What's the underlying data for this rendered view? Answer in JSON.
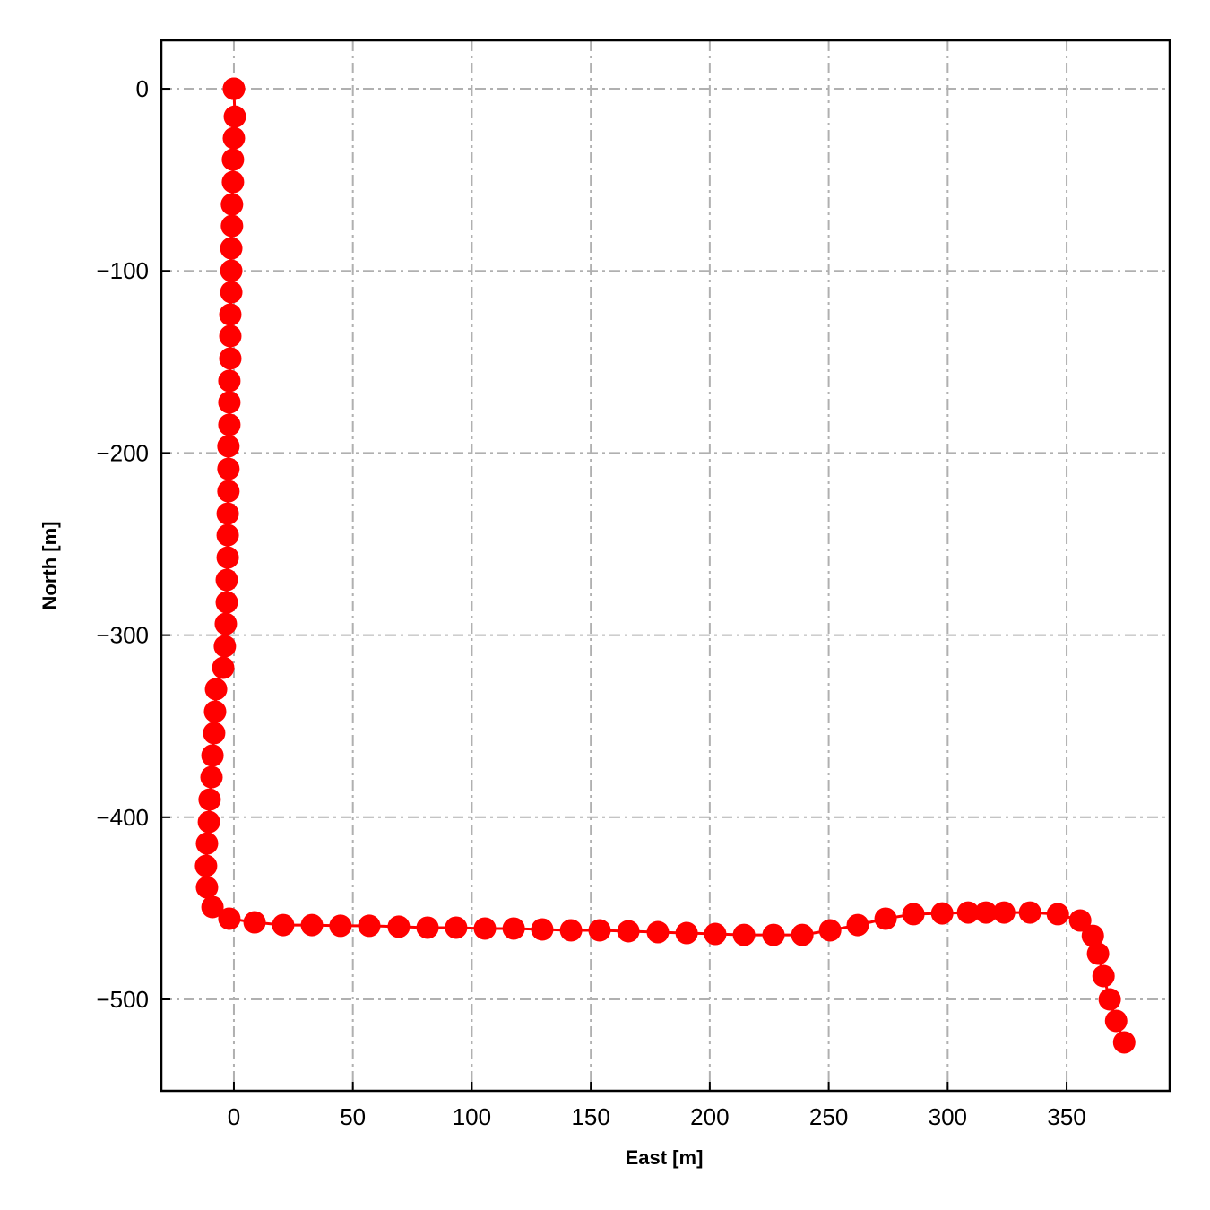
{
  "chart_data": {
    "type": "line",
    "xlabel": "East [m]",
    "ylabel": "North [m]",
    "x": [
      0,
      0,
      0.4,
      0,
      -0.4,
      -0.4,
      -0.8,
      -0.8,
      -1.1,
      -1.1,
      -1.1,
      -1.5,
      -1.5,
      -1.5,
      -1.9,
      -1.9,
      -1.9,
      -2.3,
      -2.3,
      -2.3,
      -2.6,
      -2.6,
      -2.6,
      -3.0,
      -3.0,
      -3.4,
      -3.8,
      -4.5,
      -7.5,
      -7.9,
      -8.3,
      -9.0,
      -9.4,
      -10.2,
      -10.5,
      -11.3,
      -11.7,
      -11.3,
      -9.0,
      -1.9,
      8.7,
      20.7,
      32.8,
      44.8,
      56.9,
      69.3,
      81.4,
      93.4,
      105.5,
      117.6,
      129.6,
      141.7,
      153.7,
      165.8,
      178.2,
      190.3,
      202.3,
      214.4,
      226.8,
      238.9,
      250.6,
      262.2,
      273.9,
      285.6,
      297.7,
      308.6,
      316.1,
      323.7,
      334.6,
      346.3,
      355.7,
      361.0,
      363.2,
      365.5,
      368.1,
      370.8,
      374.2
    ],
    "series": [
      {
        "color": "#ff0000",
        "values": [
          0,
          0,
          -15.3,
          -27.1,
          -38.9,
          -51.2,
          -63.5,
          -75.3,
          -87.6,
          -99.9,
          -111.7,
          -124.0,
          -135.8,
          -148.1,
          -160.4,
          -172.2,
          -184.5,
          -196.3,
          -208.7,
          -221.0,
          -233.3,
          -245.1,
          -257.4,
          -269.7,
          -282.0,
          -293.8,
          -306.1,
          -317.9,
          -329.7,
          -342.0,
          -353.8,
          -366.1,
          -378.0,
          -390.3,
          -402.6,
          -414.4,
          -426.7,
          -438.5,
          -449.3,
          -455.7,
          -457.7,
          -459.2,
          -459.2,
          -459.6,
          -459.6,
          -460.1,
          -460.6,
          -460.6,
          -461.1,
          -461.1,
          -461.6,
          -462.1,
          -462.1,
          -462.6,
          -463.1,
          -463.6,
          -464.1,
          -464.6,
          -464.6,
          -464.6,
          -462.1,
          -459.2,
          -455.7,
          -453.2,
          -452.8,
          -452.3,
          -452.3,
          -452.3,
          -452.3,
          -453.2,
          -456.7,
          -465.1,
          -474.9,
          -487.2,
          -500.0,
          -511.8,
          -523.6
        ]
      }
    ],
    "xlim": [
      -30.5,
      393.3
    ],
    "ylim": [
      -550.2,
      26.6
    ],
    "xticks": [
      0,
      50,
      100,
      150,
      200,
      250,
      300,
      350
    ],
    "yticks": [
      {
        "value": -500,
        "label": "−500"
      },
      {
        "value": -400,
        "label": "−400"
      },
      {
        "value": -300,
        "label": "−300"
      },
      {
        "value": -200,
        "label": "−200"
      },
      {
        "value": -100,
        "label": "−100"
      },
      0
    ],
    "grid": true
  }
}
